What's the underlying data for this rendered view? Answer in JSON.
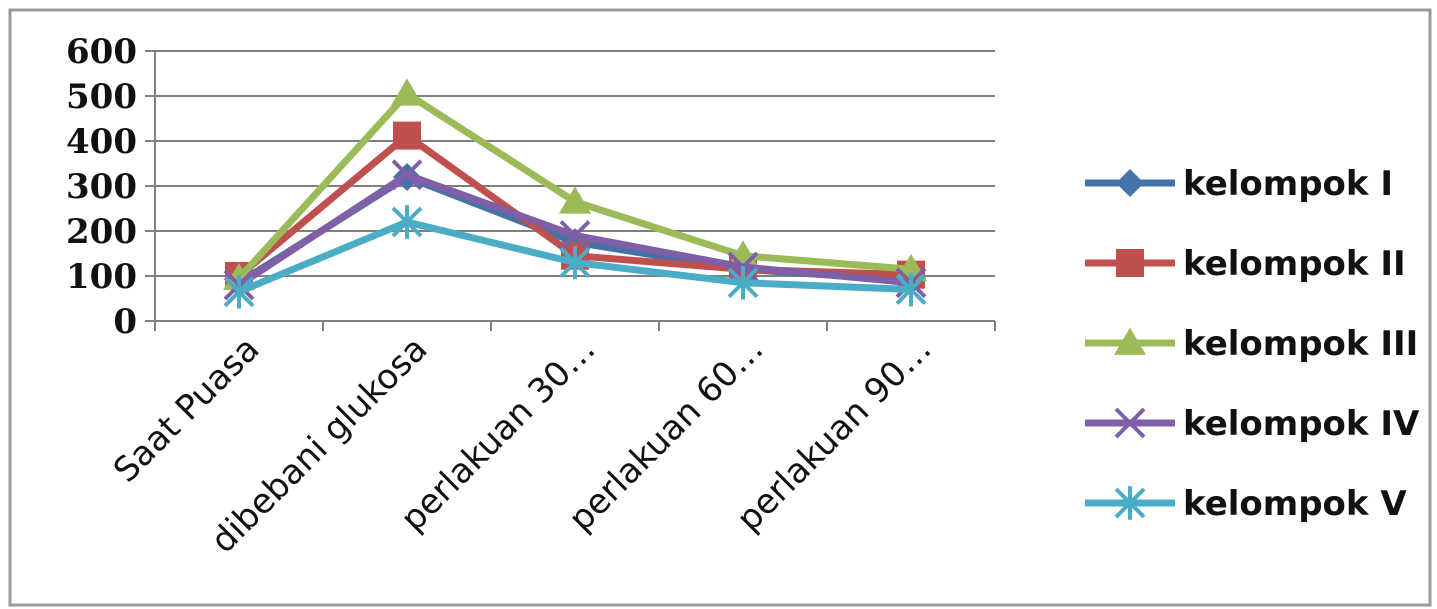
{
  "chart_data": {
    "type": "line",
    "title": "",
    "xlabel": "",
    "ylabel": "",
    "categories": [
      "Saat Puasa",
      "dibebani glukosa",
      "perlakuan 30…",
      "perlakuan 60…",
      "perlakuan 90…"
    ],
    "ylim": [
      0,
      600
    ],
    "yticks": [
      "0",
      "100",
      "200",
      "300",
      "400",
      "500",
      "600"
    ],
    "grid": "horizontal",
    "legend_position": "right",
    "series": [
      {
        "name": "kelompok I",
        "color": "#4572A7",
        "marker": "diamond",
        "values": [
          85,
          320,
          175,
          115,
          90
        ]
      },
      {
        "name": "kelompok II",
        "color": "#C0504D",
        "marker": "square",
        "values": [
          100,
          412,
          145,
          115,
          103
        ]
      },
      {
        "name": "kelompok III",
        "color": "#9BBB59",
        "marker": "triangle",
        "values": [
          95,
          505,
          265,
          145,
          115
        ]
      },
      {
        "name": "kelompok IV",
        "color": "#7F5FA5",
        "marker": "x",
        "values": [
          80,
          325,
          190,
          120,
          85
        ]
      },
      {
        "name": "kelompok V",
        "color": "#4BACC6",
        "marker": "star",
        "values": [
          65,
          220,
          130,
          85,
          70
        ]
      }
    ]
  }
}
